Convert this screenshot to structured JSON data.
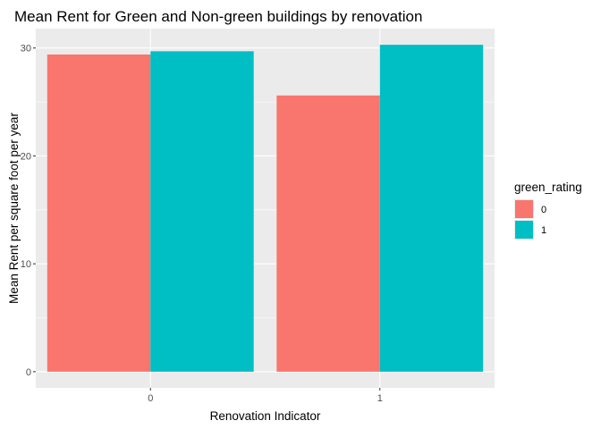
{
  "chart_data": {
    "type": "bar",
    "title": "Mean Rent for Green and Non-green buildings by renovation",
    "xlabel": "Renovation Indicator",
    "ylabel": "Mean Rent per square foot per year",
    "categories": [
      "0",
      "1"
    ],
    "series": [
      {
        "name": "0",
        "values": [
          29.4,
          25.6
        ]
      },
      {
        "name": "1",
        "values": [
          29.7,
          30.3
        ]
      }
    ],
    "ylim": [
      -1.5,
      31.8
    ],
    "yticks": [
      0,
      10,
      20,
      30
    ],
    "ytick_labels": [
      "0",
      "10",
      "20",
      "30"
    ],
    "grid": true,
    "legend": {
      "title": "green_rating",
      "placement": "right",
      "labels": [
        "0",
        "1"
      ]
    },
    "colors": {
      "series": [
        "#F8766D",
        "#00BFC4"
      ],
      "panel_background": "#EBEBEB",
      "grid": "#FFFFFF"
    }
  }
}
